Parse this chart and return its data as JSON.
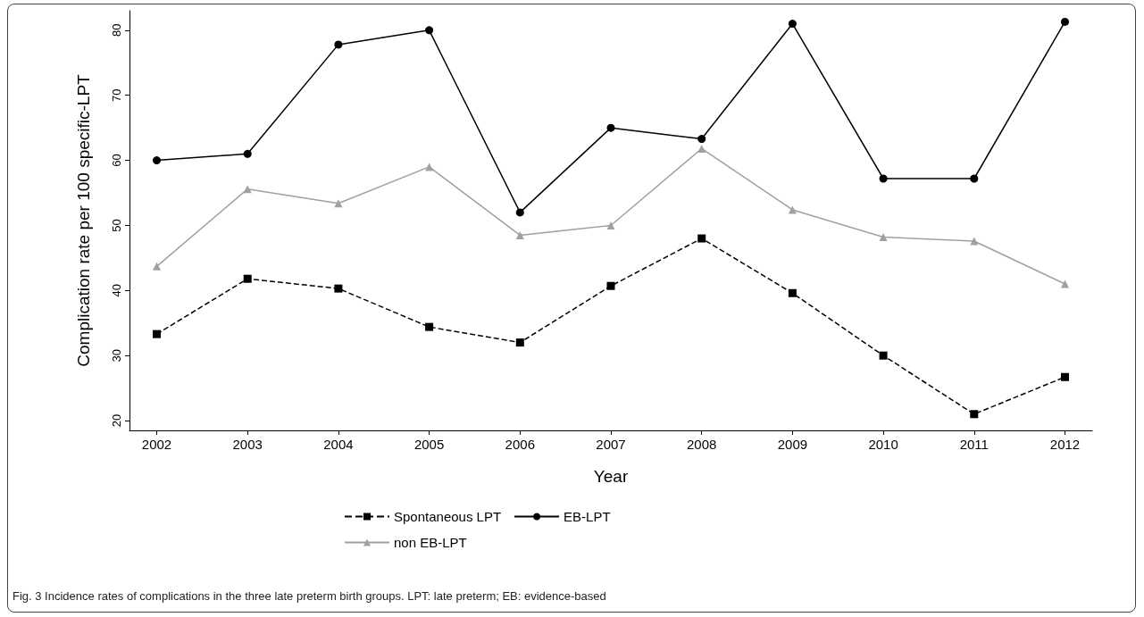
{
  "chart_data": {
    "type": "line",
    "xlabel": "Year",
    "ylabel": "Complication rate per 100 specific-LPT",
    "x": [
      2002,
      2003,
      2004,
      2005,
      2006,
      2007,
      2008,
      2009,
      2010,
      2011,
      2012
    ],
    "xlim": [
      2001.7,
      2012.3
    ],
    "xticks": [
      2002,
      2003,
      2004,
      2005,
      2006,
      2007,
      2008,
      2009,
      2010,
      2011,
      2012
    ],
    "ylim": [
      18.5,
      83
    ],
    "yticks": [
      20,
      30,
      40,
      50,
      60,
      70,
      80
    ],
    "grid": false,
    "legend": "bottom",
    "series": [
      {
        "name": "Spontaneous LPT",
        "color": "#000000",
        "marker": "square",
        "line_style": "dashed",
        "values": [
          33.3,
          41.8,
          40.3,
          34.4,
          32,
          40.7,
          48,
          39.6,
          30,
          21,
          26.7
        ]
      },
      {
        "name": "EB-LPT",
        "color": "#000000",
        "marker": "circle",
        "line_style": "solid",
        "values": [
          60,
          61,
          77.8,
          80,
          52,
          65,
          63.3,
          81,
          57.2,
          57.2,
          81.3
        ]
      },
      {
        "name": "non EB-LPT",
        "color": "#a0a0a0",
        "marker": "triangle",
        "line_style": "solid",
        "values": [
          43.7,
          55.6,
          53.4,
          59,
          48.5,
          50,
          61.8,
          52.4,
          48.2,
          47.6,
          41
        ]
      }
    ],
    "annotations": [
      "Fig. 3 Incidence rates of complications in the three late preterm birth groups. LPT: late preterm; EB: evidence-based"
    ]
  }
}
